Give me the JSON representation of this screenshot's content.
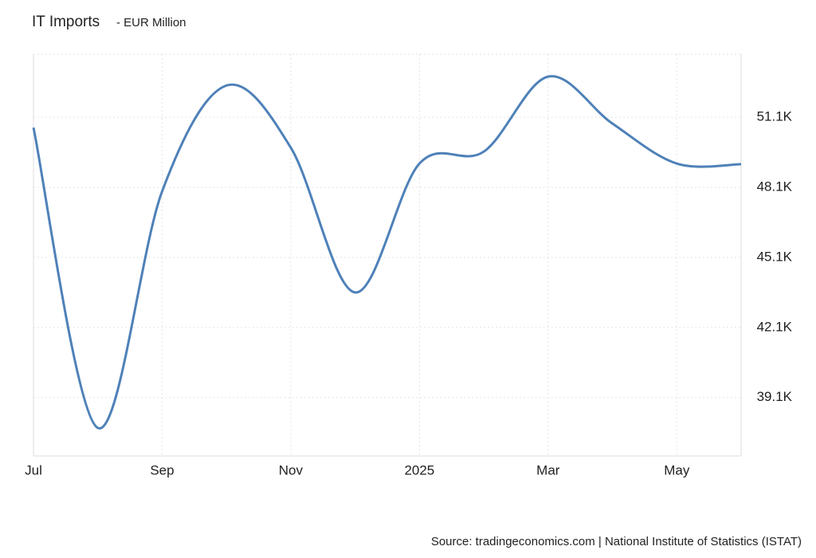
{
  "chart_data": {
    "type": "line",
    "title": "IT Imports",
    "subtitle": "- EUR Million",
    "source": "Source: tradingeconomics.com | National Institute of Statistics (ISTAT)",
    "categories": [
      "Jul",
      null,
      "Sep",
      null,
      "Nov",
      null,
      "2025",
      null,
      "Mar",
      null,
      "May",
      null
    ],
    "series": [
      {
        "name": "IT Imports",
        "color": "#4e81b8",
        "values": [
          50660,
          37800,
          47930,
          52460,
          49800,
          43600,
          49120,
          49630,
          52840,
          50830,
          49120,
          49090
        ]
      }
    ],
    "ylim": [
      36600,
      53800
    ],
    "yticks": [
      {
        "value": 39100,
        "label": "39.1K"
      },
      {
        "value": 42100,
        "label": "42.1K"
      },
      {
        "value": 45100,
        "label": "45.1K"
      },
      {
        "value": 48100,
        "label": "48.1K"
      },
      {
        "value": 51100,
        "label": "51.1K"
      }
    ],
    "grid": true
  }
}
